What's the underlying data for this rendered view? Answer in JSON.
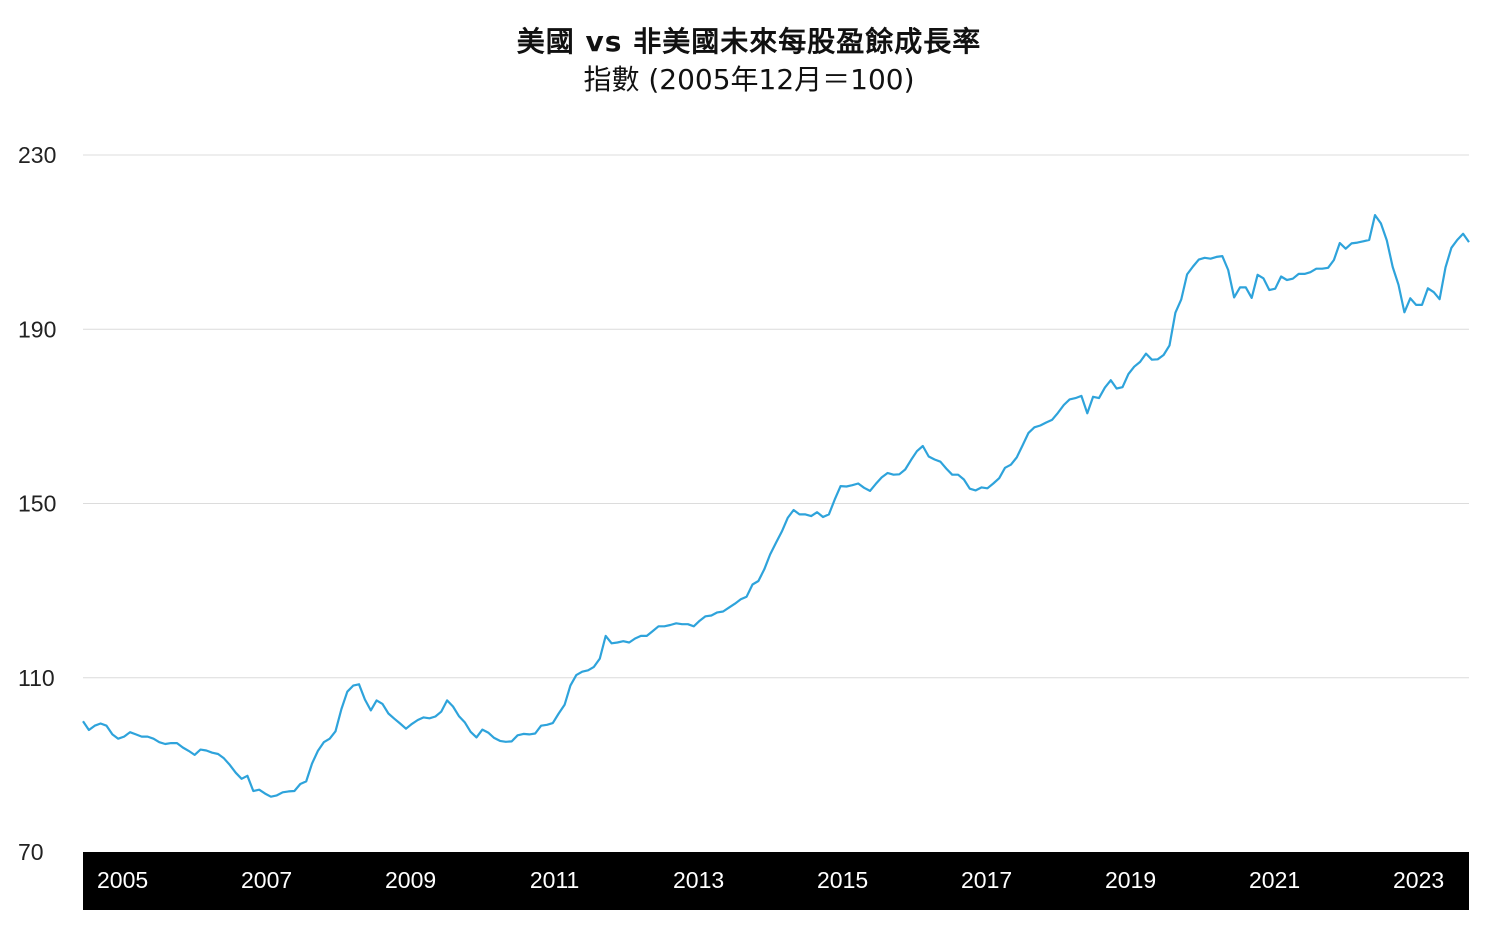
{
  "chart_data": {
    "type": "line",
    "title": "美國 vs 非美國未來每股盈餘成長率",
    "subtitle": "指數 (2005年12月＝100)",
    "xlabel": "",
    "ylabel": "",
    "ylim": [
      70,
      230
    ],
    "yticks": [
      70,
      110,
      150,
      190,
      230
    ],
    "xticks": [
      "2005",
      "2007",
      "2009",
      "2011",
      "2013",
      "2015",
      "2017",
      "2019",
      "2021",
      "2023"
    ],
    "grid": true,
    "legend": "none",
    "line_color": "#2ea3db",
    "series": [
      {
        "x": [
          2004.75,
          2005.0,
          2005.25,
          2005.5,
          2005.75,
          2006.0,
          2006.25,
          2006.5,
          2006.75,
          2007.0,
          2007.25,
          2007.5,
          2007.75,
          2008.0,
          2008.25,
          2008.5,
          2008.75,
          2009.0,
          2009.25,
          2009.5,
          2009.75,
          2010.0,
          2010.25,
          2010.5,
          2010.75,
          2011.0,
          2011.25,
          2011.5,
          2011.75,
          2012.0,
          2012.25,
          2012.5,
          2012.75,
          2013.0,
          2013.25,
          2013.5,
          2013.75,
          2014.0,
          2014.25,
          2014.5,
          2014.75,
          2015.0,
          2015.25,
          2015.5,
          2015.75,
          2016.0,
          2016.25,
          2016.5,
          2016.75,
          2017.0,
          2017.25,
          2017.5,
          2017.75,
          2018.0,
          2018.25,
          2018.5,
          2018.75,
          2019.0,
          2019.25,
          2019.5,
          2019.75,
          2020.0,
          2020.25,
          2020.5,
          2020.75,
          2021.0,
          2021.25,
          2021.5,
          2021.75,
          2022.0,
          2022.25,
          2022.5,
          2022.75,
          2023.0,
          2023.25,
          2023.5,
          2023.75
        ],
        "values": [
          100,
          98,
          99,
          96,
          97,
          96,
          94,
          93,
          91,
          90,
          87,
          84,
          81,
          80,
          80,
          85,
          95,
          105,
          108,
          103,
          102,
          104,
          103,
          99,
          96,
          96,
          97,
          100,
          108,
          114,
          119,
          120,
          121,
          122,
          122,
          124,
          126,
          131,
          138,
          144,
          147,
          146,
          150,
          155,
          155,
          157,
          160,
          156,
          154,
          153,
          158,
          162,
          166,
          170,
          175,
          173,
          176,
          178,
          180,
          185,
          192,
          206,
          207,
          203,
          199,
          203,
          203,
          206,
          207,
          210,
          212,
          210,
          209,
          206,
          200,
          208,
          212
        ],
        "monthly": [
          100,
          98,
          99,
          99.5,
          99,
          97,
          96,
          96.5,
          97.5,
          97,
          96.5,
          96.5,
          96,
          95.2,
          94.8,
          95,
          95,
          94,
          93.2,
          92.3,
          93.5,
          93.3,
          92.8,
          92.5,
          91.5,
          90,
          88.2,
          86.8,
          87.5,
          84,
          84.3,
          83.4,
          82.7,
          83,
          83.7,
          83.9,
          84,
          85.6,
          86.2,
          90.3,
          93.2,
          95.2,
          96,
          97.7,
          102.8,
          106.8,
          108.2,
          108.5,
          105,
          102.5,
          104.8,
          104,
          101.8,
          100.6,
          99.5,
          98.3,
          99.4,
          100.3,
          100.9,
          100.7,
          101.1,
          102.2,
          104.8,
          103.4,
          101.2,
          99.8,
          97.6,
          96.3,
          98.1,
          97.4,
          96.2,
          95.5,
          95.3,
          95.4,
          96.8,
          97.1,
          97,
          97.2,
          99,
          99.2,
          99.6,
          101.8,
          103.8,
          108.2,
          110.6,
          111.4,
          111.7,
          112.5,
          114.4,
          119.6,
          117.9,
          118.1,
          118.4,
          118.1,
          119,
          119.6,
          119.6,
          120.7,
          121.8,
          121.8,
          122.1,
          122.5,
          122.3,
          122.3,
          121.8,
          123.1,
          124.1,
          124.3,
          125,
          125.2,
          126.1,
          127,
          128,
          128.6,
          131.4,
          132.2,
          134.9,
          138.3,
          141,
          143.6,
          146.7,
          148.5,
          147.5,
          147.5,
          147.1,
          148,
          146.9,
          147.5,
          150.9,
          154,
          153.9,
          154.2,
          154.6,
          153.6,
          152.9,
          154.5,
          156,
          157,
          156.6,
          156.7,
          157.8,
          160,
          162,
          163.2,
          160.8,
          160.1,
          159.6,
          158,
          156.6,
          156.6,
          155.5,
          153.4,
          153,
          153.7,
          153.5,
          154.6,
          155.8,
          158.2,
          158.9,
          160.6,
          163.4,
          166.2,
          167.5,
          167.9,
          168.6,
          169.2,
          170.8,
          172.6,
          173.9,
          174.2,
          174.7,
          170.7,
          174.5,
          174.2,
          176.6,
          178.3,
          176.4,
          176.7,
          179.7,
          181.4,
          182.5,
          184.4,
          183,
          183.1,
          184.1,
          186.3,
          193.8,
          196.8,
          202.6,
          204.4,
          206,
          206.4,
          206.2,
          206.6,
          206.8,
          203.6,
          197.3,
          199.6,
          199.6,
          197.2,
          202.5,
          201.7,
          199,
          199.3,
          202.1,
          201.3,
          201.6,
          202.7,
          202.7,
          203.1,
          203.9,
          203.9,
          204.1,
          205.9,
          209.8,
          208.5,
          209.7,
          209.9,
          210.2,
          210.5,
          216.2,
          214.3,
          210.4,
          204.3,
          200.2,
          193.9,
          197.1,
          195.6,
          195.6,
          199.4,
          198.5,
          196.9,
          204.2,
          208.7,
          210.5,
          211.9,
          210
        ]
      }
    ]
  }
}
